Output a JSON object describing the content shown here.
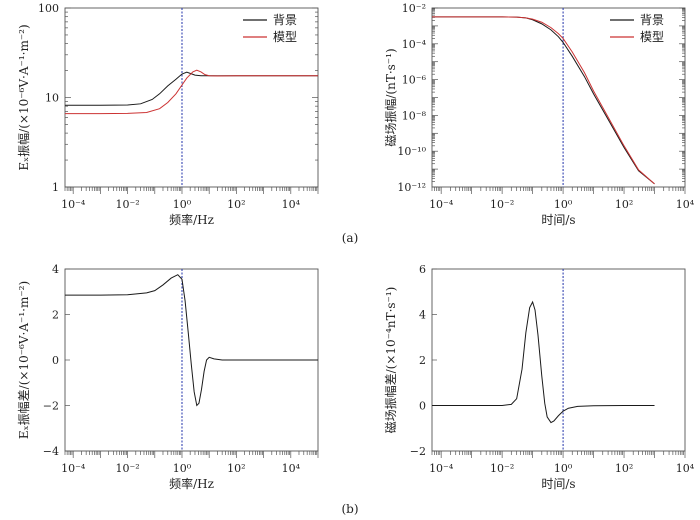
{
  "figure": {
    "caption_a": "(a)",
    "caption_b": "(b)"
  },
  "chart_data": [
    {
      "id": "a1",
      "type": "line",
      "xscale": "log",
      "yscale": "log",
      "xlim": [
        5e-05,
        100000
      ],
      "ylim": [
        1,
        100
      ],
      "xticks": [
        "10⁻⁴",
        "10⁻²",
        "10⁰",
        "10²",
        "10⁴"
      ],
      "yticks": [
        "1",
        "10",
        "100"
      ],
      "xlabel": "频率/Hz",
      "ylabel": "Eₓ振幅/(×10⁻⁶V·A⁻¹·m⁻²)",
      "vline_x": 1,
      "legend": {
        "position": "top-right"
      },
      "series": [
        {
          "name": "背景",
          "color": "#1a1a1a",
          "x": [
            5e-05,
            0.0001,
            0.001,
            0.01,
            0.03,
            0.08,
            0.15,
            0.3,
            0.6,
            1,
            1.5,
            2,
            3,
            5,
            10,
            100,
            1000,
            10000,
            100000
          ],
          "y": [
            8.2,
            8.2,
            8.2,
            8.25,
            8.5,
            9.5,
            11,
            13.5,
            16,
            18.3,
            19.2,
            18.6,
            17.8,
            17.5,
            17.5,
            17.5,
            17.5,
            17.5,
            17.5
          ]
        },
        {
          "name": "模型",
          "color": "#cc3333",
          "x": [
            5e-05,
            0.0001,
            0.001,
            0.01,
            0.05,
            0.15,
            0.3,
            0.6,
            1,
            1.5,
            2.5,
            3.5,
            5,
            7,
            10,
            20,
            100,
            1000,
            10000,
            100000
          ],
          "y": [
            6.6,
            6.6,
            6.6,
            6.65,
            6.8,
            7.5,
            8.8,
            11,
            13.8,
            16.5,
            19.3,
            20.2,
            19.3,
            18,
            17.5,
            17.4,
            17.5,
            17.5,
            17.5,
            17.5
          ]
        }
      ]
    },
    {
      "id": "a2",
      "type": "line",
      "xscale": "log",
      "yscale": "log",
      "xlim": [
        5e-05,
        10000
      ],
      "ylim": [
        1e-12,
        0.01
      ],
      "xticks": [
        "10⁻⁴",
        "10⁻²",
        "10⁰",
        "10²",
        "10⁴"
      ],
      "yticks": [
        "10⁻¹²",
        "10⁻¹⁰",
        "10⁻⁸",
        "10⁻⁶",
        "10⁻⁴",
        "10⁻²"
      ],
      "xlabel": "时间/s",
      "ylabel": "磁场振幅/(nT·s⁻¹)",
      "vline_x": 1,
      "legend": {
        "position": "top-right"
      },
      "series": [
        {
          "name": "背景",
          "color": "#1a1a1a",
          "x": [
            5e-05,
            0.0001,
            0.001,
            0.01,
            0.03,
            0.06,
            0.1,
            0.2,
            0.4,
            0.7,
            1,
            2,
            5,
            10,
            30,
            100,
            300,
            1000
          ],
          "y": [
            0.0032,
            0.0032,
            0.0032,
            0.0032,
            0.0031,
            0.0028,
            0.0022,
            0.0013,
            0.0006,
            0.00025,
            0.00012,
            2e-05,
            1.5e-06,
            1.6e-07,
            6e-09,
            1.6e-10,
            8e-12,
            1.5e-12
          ]
        },
        {
          "name": "模型",
          "color": "#cc3333",
          "x": [
            5e-05,
            0.0001,
            0.001,
            0.01,
            0.03,
            0.06,
            0.1,
            0.2,
            0.4,
            0.7,
            1,
            2,
            5,
            10,
            30,
            100,
            300,
            1000
          ],
          "y": [
            0.0032,
            0.0032,
            0.0032,
            0.0032,
            0.0031,
            0.0028,
            0.0024,
            0.0016,
            0.0008,
            0.00037,
            0.0002,
            3.5e-05,
            2.5e-06,
            2.3e-07,
            8e-09,
            2e-10,
            9e-12,
            1.5e-12
          ]
        }
      ]
    },
    {
      "id": "b1",
      "type": "line",
      "xscale": "log",
      "yscale": "linear",
      "xlim": [
        5e-05,
        100000
      ],
      "ylim": [
        -4,
        4
      ],
      "xticks": [
        "10⁻⁴",
        "10⁻²",
        "10⁰",
        "10²",
        "10⁴"
      ],
      "yticks": [
        "−4",
        "−2",
        "0",
        "2",
        "4"
      ],
      "xlabel": "频率/Hz",
      "ylabel": "Eₓ振幅差/(×10⁻⁶V·A⁻¹·m⁻²)",
      "vline_x": 1,
      "series": [
        {
          "name": "",
          "color": "#1a1a1a",
          "x": [
            5e-05,
            0.001,
            0.01,
            0.05,
            0.1,
            0.2,
            0.4,
            0.7,
            1,
            1.3,
            1.7,
            2.2,
            2.8,
            3.5,
            4.2,
            5.2,
            6.5,
            8,
            10,
            15,
            30,
            100,
            1000,
            10000,
            100000
          ],
          "y": [
            2.85,
            2.85,
            2.87,
            2.95,
            3.05,
            3.3,
            3.6,
            3.75,
            3.55,
            2.6,
            1.2,
            -0.2,
            -1.4,
            -2.0,
            -1.9,
            -1.3,
            -0.5,
            0.0,
            0.12,
            0.05,
            0.0,
            0.0,
            0.0,
            0.0,
            0.0
          ]
        }
      ]
    },
    {
      "id": "b2",
      "type": "line",
      "xscale": "log",
      "yscale": "linear",
      "xlim": [
        5e-05,
        10000
      ],
      "ylim": [
        -2,
        6
      ],
      "xticks": [
        "10⁻⁴",
        "10⁻²",
        "10⁰",
        "10²",
        "10⁴"
      ],
      "yticks": [
        "−2",
        "0",
        "2",
        "4",
        "6"
      ],
      "xlabel": "时间/s",
      "ylabel": "磁场振幅差/(×10⁻⁴nT·s⁻¹)",
      "vline_x": 1,
      "series": [
        {
          "name": "",
          "color": "#1a1a1a",
          "x": [
            5e-05,
            0.001,
            0.01,
            0.02,
            0.03,
            0.045,
            0.06,
            0.08,
            0.1,
            0.12,
            0.15,
            0.2,
            0.25,
            0.3,
            0.4,
            0.5,
            0.7,
            1,
            1.5,
            3,
            10,
            100,
            1000
          ],
          "y": [
            0,
            0,
            0,
            0.05,
            0.3,
            1.6,
            3.2,
            4.3,
            4.55,
            4.2,
            3.1,
            1.3,
            0.1,
            -0.5,
            -0.75,
            -0.68,
            -0.45,
            -0.25,
            -0.12,
            -0.04,
            -0.01,
            0,
            0
          ]
        }
      ]
    }
  ]
}
